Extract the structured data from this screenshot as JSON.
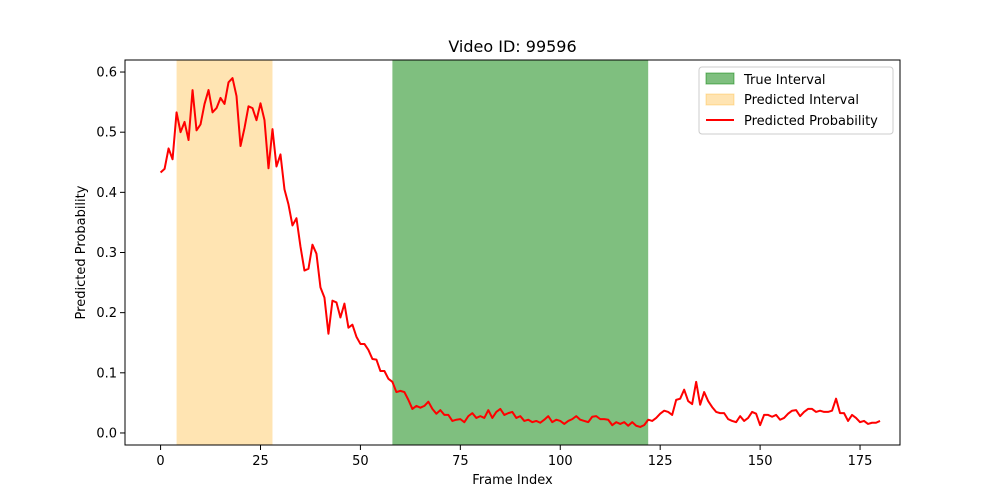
{
  "chart_data": {
    "type": "line",
    "title": "Video ID: 99596",
    "xlabel": "Frame Index",
    "ylabel": "Predicted Probability",
    "xlim": [
      -8.9,
      185.0
    ],
    "ylim": [
      -0.02,
      0.62
    ],
    "xticks": [
      0,
      25,
      50,
      75,
      100,
      125,
      150,
      175
    ],
    "yticks": [
      0.0,
      0.1,
      0.2,
      0.3,
      0.4,
      0.5,
      0.6
    ],
    "xtick_labels": [
      "0",
      "25",
      "50",
      "75",
      "100",
      "125",
      "150",
      "175"
    ],
    "ytick_labels": [
      "0.0",
      "0.1",
      "0.2",
      "0.3",
      "0.4",
      "0.5",
      "0.6"
    ],
    "grid": false,
    "legend_position": "top-right",
    "intervals": [
      {
        "name": "True Interval",
        "start": 58,
        "end": 122,
        "color": "#008000",
        "opacity": 0.5
      },
      {
        "name": "Predicted Interval",
        "start": 4,
        "end": 28,
        "color": "#ffa500",
        "opacity": 0.3
      }
    ],
    "series": [
      {
        "name": "Predicted Probability",
        "color": "#ff0000",
        "x_start": 0,
        "values": [
          0.433,
          0.439,
          0.473,
          0.455,
          0.533,
          0.5,
          0.517,
          0.487,
          0.57,
          0.503,
          0.513,
          0.547,
          0.57,
          0.533,
          0.54,
          0.557,
          0.547,
          0.583,
          0.59,
          0.56,
          0.477,
          0.507,
          0.543,
          0.54,
          0.52,
          0.548,
          0.52,
          0.44,
          0.505,
          0.443,
          0.463,
          0.405,
          0.38,
          0.345,
          0.357,
          0.31,
          0.27,
          0.273,
          0.313,
          0.298,
          0.242,
          0.225,
          0.165,
          0.22,
          0.217,
          0.192,
          0.215,
          0.175,
          0.18,
          0.16,
          0.148,
          0.148,
          0.138,
          0.123,
          0.122,
          0.103,
          0.103,
          0.09,
          0.085,
          0.068,
          0.07,
          0.068,
          0.055,
          0.04,
          0.045,
          0.042,
          0.045,
          0.052,
          0.04,
          0.032,
          0.038,
          0.03,
          0.03,
          0.02,
          0.022,
          0.023,
          0.018,
          0.028,
          0.033,
          0.025,
          0.028,
          0.025,
          0.038,
          0.025,
          0.035,
          0.04,
          0.03,
          0.033,
          0.035,
          0.025,
          0.028,
          0.02,
          0.022,
          0.018,
          0.02,
          0.017,
          0.022,
          0.028,
          0.018,
          0.022,
          0.02,
          0.015,
          0.02,
          0.023,
          0.028,
          0.022,
          0.02,
          0.018,
          0.027,
          0.028,
          0.023,
          0.023,
          0.022,
          0.013,
          0.018,
          0.015,
          0.018,
          0.012,
          0.018,
          0.012,
          0.01,
          0.013,
          0.022,
          0.02,
          0.025,
          0.032,
          0.037,
          0.035,
          0.03,
          0.055,
          0.057,
          0.072,
          0.053,
          0.048,
          0.085,
          0.047,
          0.068,
          0.053,
          0.043,
          0.035,
          0.033,
          0.033,
          0.023,
          0.02,
          0.018,
          0.028,
          0.02,
          0.025,
          0.035,
          0.032,
          0.013,
          0.03,
          0.03,
          0.027,
          0.03,
          0.022,
          0.025,
          0.032,
          0.037,
          0.038,
          0.028,
          0.035,
          0.04,
          0.04,
          0.035,
          0.037,
          0.035,
          0.035,
          0.037,
          0.057,
          0.033,
          0.033,
          0.02,
          0.03,
          0.025,
          0.018,
          0.02,
          0.015,
          0.017,
          0.017,
          0.02
        ]
      }
    ]
  }
}
